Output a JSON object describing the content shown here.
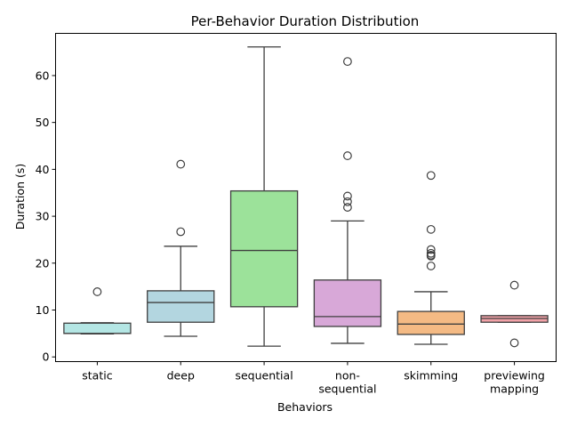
{
  "chart_data": {
    "type": "box",
    "title": "Per-Behavior Duration Distribution",
    "xlabel": "Behaviors",
    "ylabel": "Duration (s)",
    "ylim": [
      -1,
      69
    ],
    "yticks": [
      0,
      10,
      20,
      30,
      40,
      50,
      60
    ],
    "grid": false,
    "categories": [
      {
        "label_lines": [
          "static"
        ],
        "color": "#b4e6e4",
        "whisker_low": 4.9,
        "q1": 5.0,
        "median": 5.0,
        "q3": 7.2,
        "whisker_high": 7.3,
        "outliers": [
          13.9
        ]
      },
      {
        "label_lines": [
          "deep"
        ],
        "color": "#b3d6e0",
        "whisker_low": 4.4,
        "q1": 7.4,
        "median": 11.6,
        "q3": 14.1,
        "whisker_high": 23.6,
        "outliers": [
          26.7,
          41.1
        ]
      },
      {
        "label_lines": [
          "sequential"
        ],
        "color": "#9ce29a",
        "whisker_low": 2.3,
        "q1": 10.7,
        "median": 22.7,
        "q3": 35.4,
        "whisker_high": 66.1,
        "outliers": []
      },
      {
        "label_lines": [
          "non-",
          "sequential"
        ],
        "color": "#d8a8d8",
        "whisker_low": 2.9,
        "q1": 6.5,
        "median": 8.6,
        "q3": 16.4,
        "whisker_high": 29.0,
        "outliers": [
          31.9,
          33.1,
          34.3,
          42.9,
          63.0
        ]
      },
      {
        "label_lines": [
          "skimming"
        ],
        "color": "#f4ba84",
        "whisker_low": 2.7,
        "q1": 4.8,
        "median": 7.0,
        "q3": 9.7,
        "whisker_high": 13.9,
        "outliers": [
          19.4,
          21.5,
          21.7,
          22.1,
          22.9,
          27.2,
          38.7
        ]
      },
      {
        "label_lines": [
          "previewing",
          "mapping"
        ],
        "color": "#f2a2a8",
        "whisker_low": 7.4,
        "q1": 7.4,
        "median": 8.2,
        "q3": 8.8,
        "whisker_high": 8.8,
        "outliers": [
          3.0,
          15.3
        ]
      }
    ]
  }
}
